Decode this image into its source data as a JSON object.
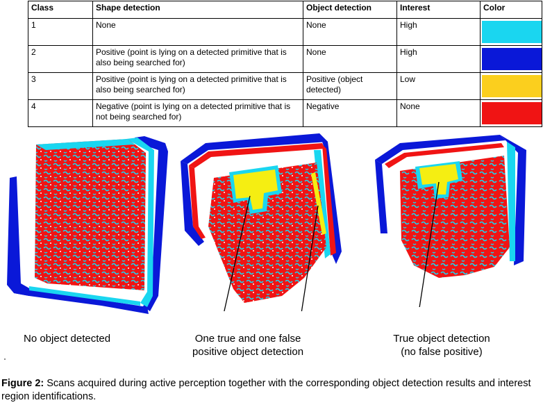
{
  "table": {
    "headers": [
      "Class",
      "Shape detection",
      "Object detection",
      "Interest",
      "Color"
    ],
    "rows": [
      {
        "class": "1",
        "shape": "None",
        "object": "None",
        "interest": "High",
        "color": "#1ad6f0"
      },
      {
        "class": "2",
        "shape": "Positive (point is lying on a detected primitive that is also being searched for)",
        "object": "None",
        "interest": "High",
        "color": "#0a18d8"
      },
      {
        "class": "3",
        "shape": "Positive (point is lying on a detected primitive that is also being searched for)",
        "object": "Positive (object detected)",
        "interest": "Low",
        "color": "#fbcf1e"
      },
      {
        "class": "4",
        "shape": "Negative (point is lying on a detected primitive that is not being searched for)",
        "object": "Negative",
        "interest": "None",
        "color": "#f01414"
      }
    ]
  },
  "scans": {
    "left_label": "No object detected",
    "middle_label_line1": "One true and one false",
    "middle_label_line2": "positive object detection",
    "right_label_line1": "True object detection",
    "right_label_line2": "(no false positive)"
  },
  "figure": {
    "label": "Figure 2:",
    "text": " Scans acquired during active perception together with the corresponding object detection results and interest region identifications."
  },
  "colors": {
    "cyan": "#1ad6f0",
    "blue": "#0a18d8",
    "yellow": "#fbcf1e",
    "bright_yellow": "#f5ee12",
    "red": "#f01414"
  }
}
